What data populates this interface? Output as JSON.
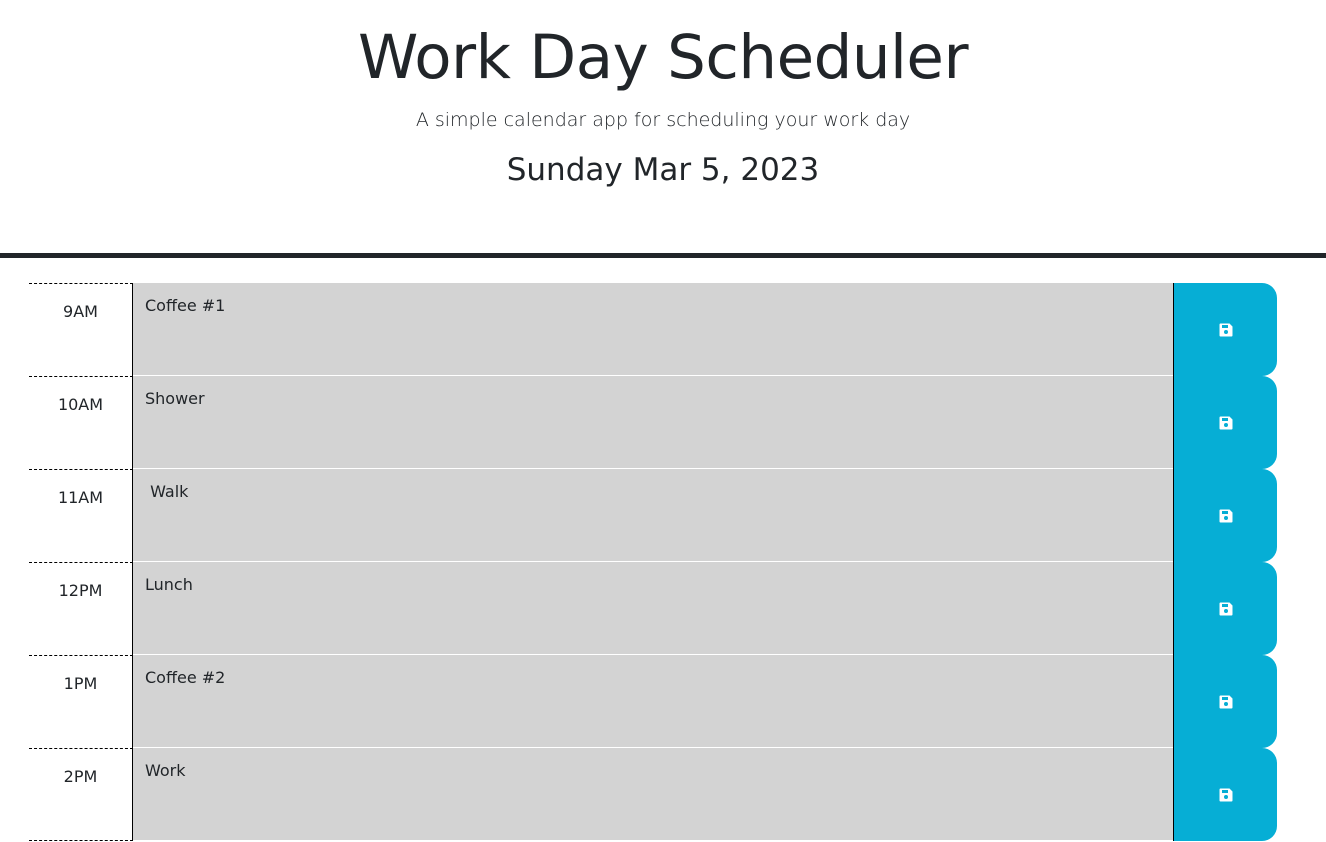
{
  "header": {
    "title": "Work Day Scheduler",
    "subtitle": "A simple calendar app for scheduling your work day",
    "current_day": "Sunday Mar 5, 2023"
  },
  "colors": {
    "past": "#d3d3d3",
    "save_button": "#06aed5",
    "header_border": "#212529"
  },
  "save_icon": "floppy-disk-icon",
  "time_blocks": [
    {
      "hour": "9AM",
      "description": "Coffee #1"
    },
    {
      "hour": "10AM",
      "description": "Shower"
    },
    {
      "hour": "11AM",
      "description": " Walk"
    },
    {
      "hour": "12PM",
      "description": "Lunch"
    },
    {
      "hour": "1PM",
      "description": "Coffee #2"
    },
    {
      "hour": "2PM",
      "description": "Work"
    }
  ]
}
